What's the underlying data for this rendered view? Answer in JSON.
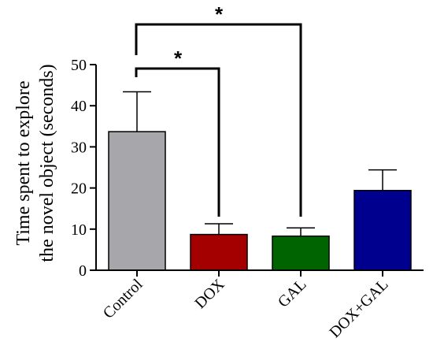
{
  "chart_data": {
    "type": "bar",
    "categories": [
      "Control",
      "DOX",
      "GAL",
      "DOX+GAL"
    ],
    "values": [
      33.7,
      8.7,
      8.3,
      19.4
    ],
    "error": [
      9.7,
      2.6,
      2.0,
      5.0
    ],
    "colors": [
      "#a6a6ab",
      "#a50000",
      "#006400",
      "#00008f"
    ],
    "ylabel_lines": [
      "Time spent to explore",
      "the novel object (seconds)"
    ],
    "xlabel": "",
    "ylim": [
      0,
      50
    ],
    "yticks": [
      0,
      10,
      20,
      30,
      40,
      50
    ],
    "grid": false,
    "significance": [
      {
        "from": "Control",
        "to": "DOX",
        "label": "*"
      },
      {
        "from": "Control",
        "to": "GAL",
        "label": "*"
      }
    ]
  }
}
